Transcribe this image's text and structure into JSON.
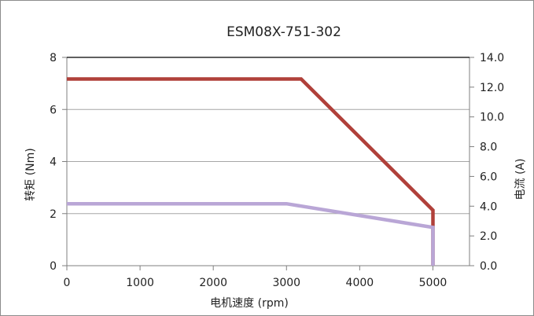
{
  "chart_data": {
    "type": "line",
    "title": "ESM08X-751-302",
    "xlabel": "电机速度 (rpm)",
    "ylabel": "转矩 (Nm)",
    "y2label": "电流 (A)",
    "xlim": [
      0,
      5500
    ],
    "ylim": [
      0,
      8
    ],
    "y2lim": [
      0,
      14
    ],
    "xticks": [
      0,
      1000,
      2000,
      3000,
      4000,
      5000
    ],
    "xtick_labels": [
      "0",
      "1000",
      "2000",
      "3000",
      "4000",
      "5000"
    ],
    "yticks": [
      0,
      2,
      4,
      6,
      8
    ],
    "ytick_labels": [
      "0",
      "2",
      "4",
      "6",
      "8"
    ],
    "y2ticks": [
      0,
      2,
      4,
      6,
      8,
      10,
      12,
      14
    ],
    "y2tick_labels": [
      "0.0",
      "2.0",
      "4.0",
      "6.0",
      "8.0",
      "10.0",
      "12.0",
      "14.0"
    ],
    "grid": true,
    "series": [
      {
        "axis": "left",
        "color": "#b0403a",
        "points": [
          [
            0,
            7.17
          ],
          [
            3200,
            7.17
          ],
          [
            5000,
            2.13
          ],
          [
            5000,
            0
          ]
        ]
      },
      {
        "axis": "left",
        "color": "#b9a6d6",
        "points": [
          [
            0,
            2.38
          ],
          [
            3000,
            2.38
          ],
          [
            5000,
            1.47
          ],
          [
            5000,
            0
          ]
        ]
      }
    ]
  }
}
